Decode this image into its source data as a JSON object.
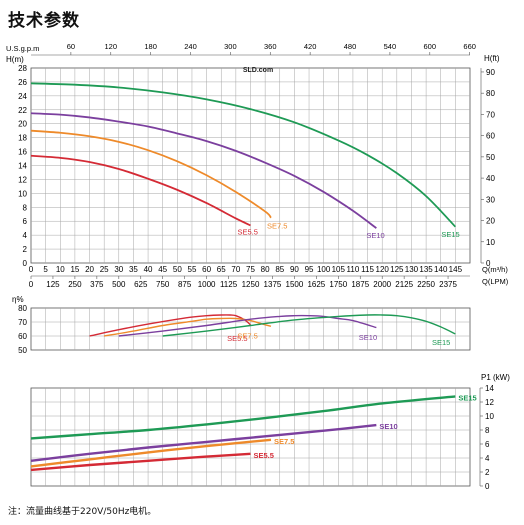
{
  "page": {
    "title": "技术参数",
    "footnote": "注：流量曲线基于220V/50Hz电机。",
    "watermark": "SLD.com"
  },
  "colors": {
    "SE5.5": "#d42a35",
    "SE7.5": "#ee8a2a",
    "SE10": "#7b3f9e",
    "SE15": "#1e9a55",
    "grid": "#a6a6a6"
  },
  "chart_data": [
    {
      "type": "line",
      "title": "",
      "xlabel": "Q(m³/h)",
      "xlabel2": "Q(LPM)",
      "ylabel": "H(m)",
      "ylabel_right": "H(ft)",
      "xlabel_top": "U.S.g.p.m",
      "xlim": [
        0,
        150
      ],
      "ylim": [
        0,
        28
      ],
      "grid": true,
      "x_ticks": [
        0,
        5,
        10,
        15,
        20,
        25,
        30,
        35,
        40,
        45,
        50,
        55,
        60,
        65,
        70,
        75,
        80,
        85,
        90,
        95,
        100,
        105,
        110,
        115,
        120,
        125,
        130,
        135,
        140,
        145
      ],
      "x_ticks_lpm": [
        "0",
        "125",
        "250",
        "375",
        "500",
        "625",
        "750",
        "875",
        "1000",
        "1125",
        "1250",
        "1375",
        "1500",
        "1625",
        "1750",
        "1875",
        "2000",
        "2125",
        "2250",
        "2375"
      ],
      "x_ticks_gpm": [
        "60",
        "120",
        "180",
        "240",
        "300",
        "360",
        "420",
        "480",
        "540",
        "600",
        "660"
      ],
      "y_ticks": [
        0,
        2,
        4,
        6,
        8,
        10,
        12,
        14,
        16,
        18,
        20,
        22,
        24,
        26,
        28
      ],
      "y_ticks_ft": [
        "0",
        "10",
        "20",
        "30",
        "40",
        "50",
        "60",
        "70",
        "80",
        "90"
      ],
      "series": [
        {
          "name": "SE5.5",
          "x": [
            0,
            10,
            20,
            30,
            40,
            50,
            60,
            70,
            75
          ],
          "y": [
            15.4,
            15.1,
            14.5,
            13.5,
            12.1,
            10.5,
            8.6,
            6.4,
            5.4
          ]
        },
        {
          "name": "SE7.5",
          "x": [
            0,
            10,
            20,
            30,
            40,
            50,
            60,
            70,
            80,
            82
          ],
          "y": [
            19.0,
            18.7,
            18.2,
            17.4,
            16.2,
            14.6,
            12.6,
            10.2,
            7.4,
            6.5
          ]
        },
        {
          "name": "SE10",
          "x": [
            0,
            10,
            20,
            30,
            40,
            50,
            60,
            70,
            80,
            90,
            100,
            110,
            118
          ],
          "y": [
            21.5,
            21.3,
            20.9,
            20.3,
            19.6,
            18.6,
            17.5,
            16.1,
            14.4,
            12.5,
            10.2,
            7.5,
            5.0
          ]
        },
        {
          "name": "SE15",
          "x": [
            0,
            15,
            30,
            45,
            60,
            75,
            90,
            105,
            115,
            125,
            135,
            145
          ],
          "y": [
            25.8,
            25.6,
            25.2,
            24.5,
            23.5,
            22.1,
            20.2,
            17.6,
            15.5,
            12.9,
            9.6,
            5.2
          ]
        }
      ]
    },
    {
      "type": "line",
      "title": "",
      "ylabel": "η%",
      "xlim": [
        0,
        150
      ],
      "ylim": [
        50,
        80
      ],
      "grid": true,
      "y_ticks": [
        50,
        60,
        70,
        80
      ],
      "series": [
        {
          "name": "SE5.5",
          "x": [
            20,
            30,
            40,
            50,
            55,
            60,
            65,
            68,
            70,
            73,
            75
          ],
          "y": [
            60,
            64.5,
            68.5,
            72,
            73.5,
            74.5,
            75,
            75,
            74.5,
            71.5,
            68
          ]
        },
        {
          "name": "SE7.5",
          "x": [
            25,
            35,
            45,
            55,
            60,
            65,
            70,
            75,
            80,
            82
          ],
          "y": [
            60,
            63.5,
            67.5,
            70.5,
            72,
            72.5,
            72.5,
            71,
            68,
            67
          ]
        },
        {
          "name": "SE10",
          "x": [
            30,
            45,
            60,
            75,
            85,
            90,
            95,
            100,
            105,
            110,
            118
          ],
          "y": [
            60,
            63.5,
            67.5,
            72,
            74,
            74.5,
            74.5,
            74,
            72.5,
            71,
            66
          ]
        },
        {
          "name": "SE15",
          "x": [
            45,
            60,
            75,
            90,
            105,
            115,
            120,
            125,
            130,
            135,
            140,
            145
          ],
          "y": [
            60,
            63.5,
            67.5,
            71.5,
            74,
            75,
            75,
            74.5,
            73,
            70.5,
            66.5,
            61.5
          ]
        }
      ]
    },
    {
      "type": "line",
      "title": "",
      "ylabel_right": "P1 (kW)",
      "xlim": [
        0,
        150
      ],
      "ylim": [
        0,
        14
      ],
      "grid": true,
      "y_ticks_right": [
        0,
        2,
        4,
        6,
        8,
        10,
        12,
        14
      ],
      "series": [
        {
          "name": "SE5.5",
          "x": [
            0,
            20,
            40,
            60,
            75
          ],
          "y": [
            2.3,
            3.0,
            3.6,
            4.2,
            4.6
          ]
        },
        {
          "name": "SE7.5",
          "x": [
            0,
            20,
            40,
            60,
            82
          ],
          "y": [
            2.8,
            3.8,
            4.8,
            5.7,
            6.6
          ]
        },
        {
          "name": "SE10",
          "x": [
            0,
            20,
            40,
            60,
            80,
            100,
            118
          ],
          "y": [
            3.6,
            4.6,
            5.5,
            6.3,
            7.1,
            7.9,
            8.7
          ]
        },
        {
          "name": "SE15",
          "x": [
            0,
            20,
            40,
            60,
            80,
            100,
            120,
            145
          ],
          "y": [
            6.8,
            7.4,
            8.0,
            8.8,
            9.7,
            10.7,
            11.8,
            12.8
          ]
        }
      ]
    }
  ]
}
